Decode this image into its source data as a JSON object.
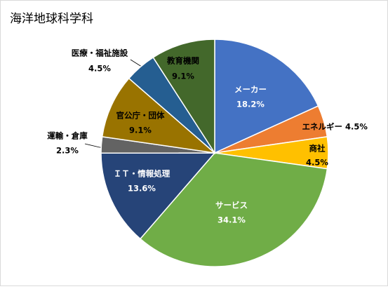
{
  "chart_data": {
    "type": "pie",
    "title": "海洋地球科学科",
    "categories": [
      "メーカー",
      "エネルギー",
      "商社",
      "サービス",
      "ＩＴ・情報処理",
      "運輸・倉庫",
      "官公庁・団体",
      "医療・福祉施設",
      "教育機関"
    ],
    "values": [
      18.2,
      4.5,
      4.5,
      34.1,
      13.6,
      2.3,
      9.1,
      4.5,
      9.1
    ],
    "value_labels": [
      "18.2%",
      "4.5%",
      "4.5%",
      "34.1%",
      "13.6%",
      "2.3%",
      "9.1%",
      "4.5%",
      "9.1%"
    ],
    "colors": [
      "#4472c4",
      "#ed7d31",
      "#ffc000",
      "#70ad47",
      "#264478",
      "#636363",
      "#997300",
      "#255e91",
      "#43682b"
    ]
  }
}
